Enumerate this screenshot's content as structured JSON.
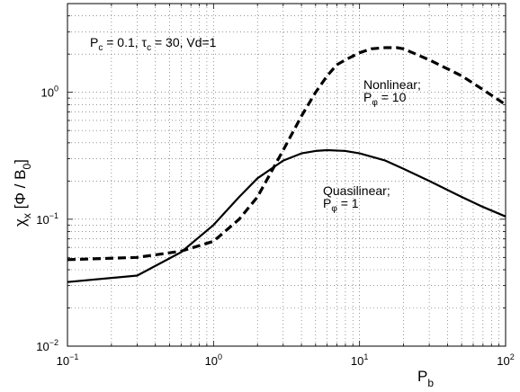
{
  "chart_data": {
    "type": "line",
    "xscale": "log",
    "yscale": "log",
    "xlim": [
      0.1,
      100
    ],
    "ylim": [
      0.01,
      5
    ],
    "grid": true,
    "xlabel": {
      "main": "P",
      "sub": "b"
    },
    "ylabel": {
      "chi": "χ",
      "sub": "x",
      "rest": " [Φ / B",
      "sub2": "0",
      "close": "]"
    },
    "x_ticks": [
      {
        "value": 0.1,
        "base": "10",
        "exp": "−1"
      },
      {
        "value": 1,
        "base": "10",
        "exp": "0"
      },
      {
        "value": 10,
        "base": "10",
        "exp": "1"
      },
      {
        "value": 100,
        "base": "10",
        "exp": "2"
      }
    ],
    "y_ticks": [
      {
        "value": 0.01,
        "base": "10",
        "exp": "−2"
      },
      {
        "value": 0.1,
        "base": "10",
        "exp": "−1"
      },
      {
        "value": 1,
        "base": "10",
        "exp": "0"
      }
    ],
    "parameters": {
      "pc": "P",
      "pc_sub": "c",
      "pc_val": " = 0.1, ",
      "tau": "τ",
      "tau_sub": "c",
      "tau_val": " = 30, Vd=1"
    },
    "series": [
      {
        "name": "Quasilinear",
        "param": "P",
        "param_sub": "φ",
        "param_val": " = 1",
        "style": "solid",
        "x": [
          0.1,
          0.3,
          0.6,
          1.0,
          1.5,
          2.0,
          3.0,
          4.0,
          5.0,
          6.0,
          8.0,
          10,
          15,
          20,
          30,
          50,
          70,
          100
        ],
        "y": [
          0.032,
          0.036,
          0.055,
          0.09,
          0.15,
          0.21,
          0.29,
          0.33,
          0.345,
          0.35,
          0.345,
          0.33,
          0.29,
          0.25,
          0.2,
          0.15,
          0.125,
          0.105
        ]
      },
      {
        "name": "Nonlinear",
        "param": "P",
        "param_sub": "φ",
        "param_val": " = 10",
        "style": "dashed",
        "x": [
          0.1,
          0.3,
          0.6,
          1.0,
          1.5,
          2.0,
          3.0,
          4.0,
          5.0,
          6.0,
          7.0,
          8.0,
          10,
          12,
          15,
          18,
          20,
          30,
          50,
          70,
          100
        ],
        "y": [
          0.048,
          0.05,
          0.056,
          0.067,
          0.1,
          0.15,
          0.35,
          0.65,
          1.0,
          1.35,
          1.65,
          1.8,
          2.05,
          2.2,
          2.25,
          2.25,
          2.2,
          1.8,
          1.35,
          1.05,
          0.8
        ]
      }
    ]
  }
}
